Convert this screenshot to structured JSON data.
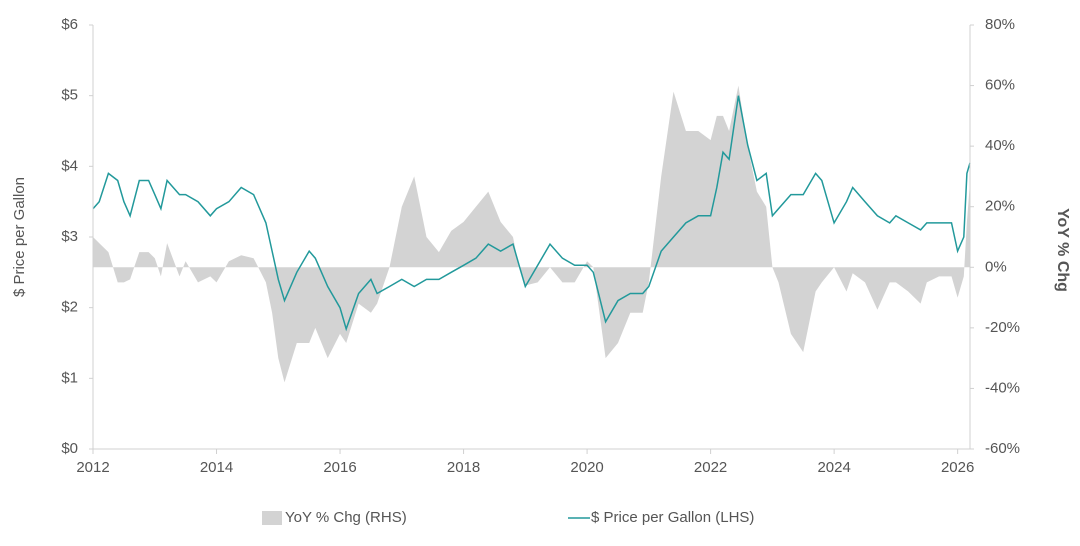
{
  "chart_data": {
    "type": "line",
    "ylabel": "$ Price per Gallon",
    "y2label": "YoY % Chg",
    "x": [
      2012.0,
      2012.1,
      2012.25,
      2012.4,
      2012.5,
      2012.6,
      2012.75,
      2012.9,
      2013.0,
      2013.1,
      2013.2,
      2013.4,
      2013.5,
      2013.7,
      2013.9,
      2014.0,
      2014.2,
      2014.4,
      2014.6,
      2014.8,
      2014.9,
      2015.0,
      2015.1,
      2015.3,
      2015.5,
      2015.6,
      2015.8,
      2016.0,
      2016.1,
      2016.3,
      2016.5,
      2016.6,
      2016.8,
      2017.0,
      2017.2,
      2017.4,
      2017.6,
      2017.8,
      2018.0,
      2018.2,
      2018.4,
      2018.6,
      2018.8,
      2018.9,
      2019.0,
      2019.2,
      2019.4,
      2019.6,
      2019.8,
      2020.0,
      2020.1,
      2020.3,
      2020.5,
      2020.7,
      2020.9,
      2021.0,
      2021.2,
      2021.4,
      2021.6,
      2021.8,
      2022.0,
      2022.1,
      2022.2,
      2022.3,
      2022.45,
      2022.6,
      2022.75,
      2022.9,
      2023.0,
      2023.1,
      2023.3,
      2023.5,
      2023.7,
      2023.8,
      2024.0,
      2024.2,
      2024.3,
      2024.5,
      2024.7,
      2024.9,
      2025.0,
      2025.2,
      2025.4,
      2025.5,
      2025.7,
      2025.9,
      2026.0,
      2026.1,
      2026.15,
      2026.2
    ],
    "series": [
      {
        "name": "YoY % Chg (RHS)",
        "type": "area",
        "axis": "y2",
        "color": "#d3d3d3",
        "values": [
          10,
          8,
          5,
          -5,
          -5,
          -4,
          5,
          5,
          3,
          -3,
          8,
          -3,
          2,
          -5,
          -3,
          -5,
          2,
          4,
          3,
          -5,
          -15,
          -30,
          -38,
          -25,
          -25,
          -20,
          -30,
          -22,
          -25,
          -12,
          -15,
          -12,
          0,
          20,
          30,
          10,
          5,
          12,
          15,
          20,
          25,
          15,
          10,
          0,
          -6,
          -5,
          0,
          -5,
          -5,
          2,
          0,
          -30,
          -25,
          -15,
          -15,
          -5,
          30,
          58,
          45,
          45,
          42,
          50,
          50,
          45,
          60,
          40,
          25,
          20,
          0,
          -5,
          -22,
          -28,
          -8,
          -5,
          0,
          -8,
          -2,
          -5,
          -14,
          -5,
          -5,
          -8,
          -12,
          -5,
          -3,
          -3,
          -10,
          -3,
          15,
          28
        ]
      },
      {
        "name": "$ Price per Gallon (LHS)",
        "type": "line",
        "color": "#22999b",
        "values": [
          3.4,
          3.5,
          3.9,
          3.8,
          3.5,
          3.3,
          3.8,
          3.8,
          3.6,
          3.4,
          3.8,
          3.6,
          3.6,
          3.5,
          3.3,
          3.4,
          3.5,
          3.7,
          3.6,
          3.2,
          2.8,
          2.4,
          2.1,
          2.5,
          2.8,
          2.7,
          2.3,
          2.0,
          1.7,
          2.2,
          2.4,
          2.2,
          2.3,
          2.4,
          2.3,
          2.4,
          2.4,
          2.5,
          2.6,
          2.7,
          2.9,
          2.8,
          2.9,
          2.6,
          2.3,
          2.6,
          2.9,
          2.7,
          2.6,
          2.6,
          2.5,
          1.8,
          2.1,
          2.2,
          2.2,
          2.3,
          2.8,
          3.0,
          3.2,
          3.3,
          3.3,
          3.7,
          4.2,
          4.1,
          5.0,
          4.3,
          3.8,
          3.9,
          3.3,
          3.4,
          3.6,
          3.6,
          3.9,
          3.8,
          3.2,
          3.5,
          3.7,
          3.5,
          3.3,
          3.2,
          3.3,
          3.2,
          3.1,
          3.2,
          3.2,
          3.2,
          2.8,
          3.0,
          3.9,
          4.05
        ]
      }
    ],
    "xlim": [
      2012,
      2026.2
    ],
    "xticks": [
      2012,
      2014,
      2016,
      2018,
      2020,
      2022,
      2024,
      2026
    ],
    "ylim": [
      0,
      6
    ],
    "yticks": [
      {
        "value": 0,
        "label": "$0"
      },
      {
        "value": 1,
        "label": "$1"
      },
      {
        "value": 2,
        "label": "$2"
      },
      {
        "value": 3,
        "label": "$3"
      },
      {
        "value": 4,
        "label": "$4"
      },
      {
        "value": 5,
        "label": "$5"
      },
      {
        "value": 6,
        "label": "$6"
      }
    ],
    "y2lim": [
      -60,
      80
    ],
    "y2ticks": [
      {
        "value": -60,
        "label": "-60%"
      },
      {
        "value": -40,
        "label": "-40%"
      },
      {
        "value": -20,
        "label": "-20%"
      },
      {
        "value": 0,
        "label": "0%"
      },
      {
        "value": 20,
        "label": "20%"
      },
      {
        "value": 40,
        "label": "40%"
      },
      {
        "value": 60,
        "label": "60%"
      },
      {
        "value": 80,
        "label": "80%"
      }
    ],
    "legend": "bottom"
  }
}
